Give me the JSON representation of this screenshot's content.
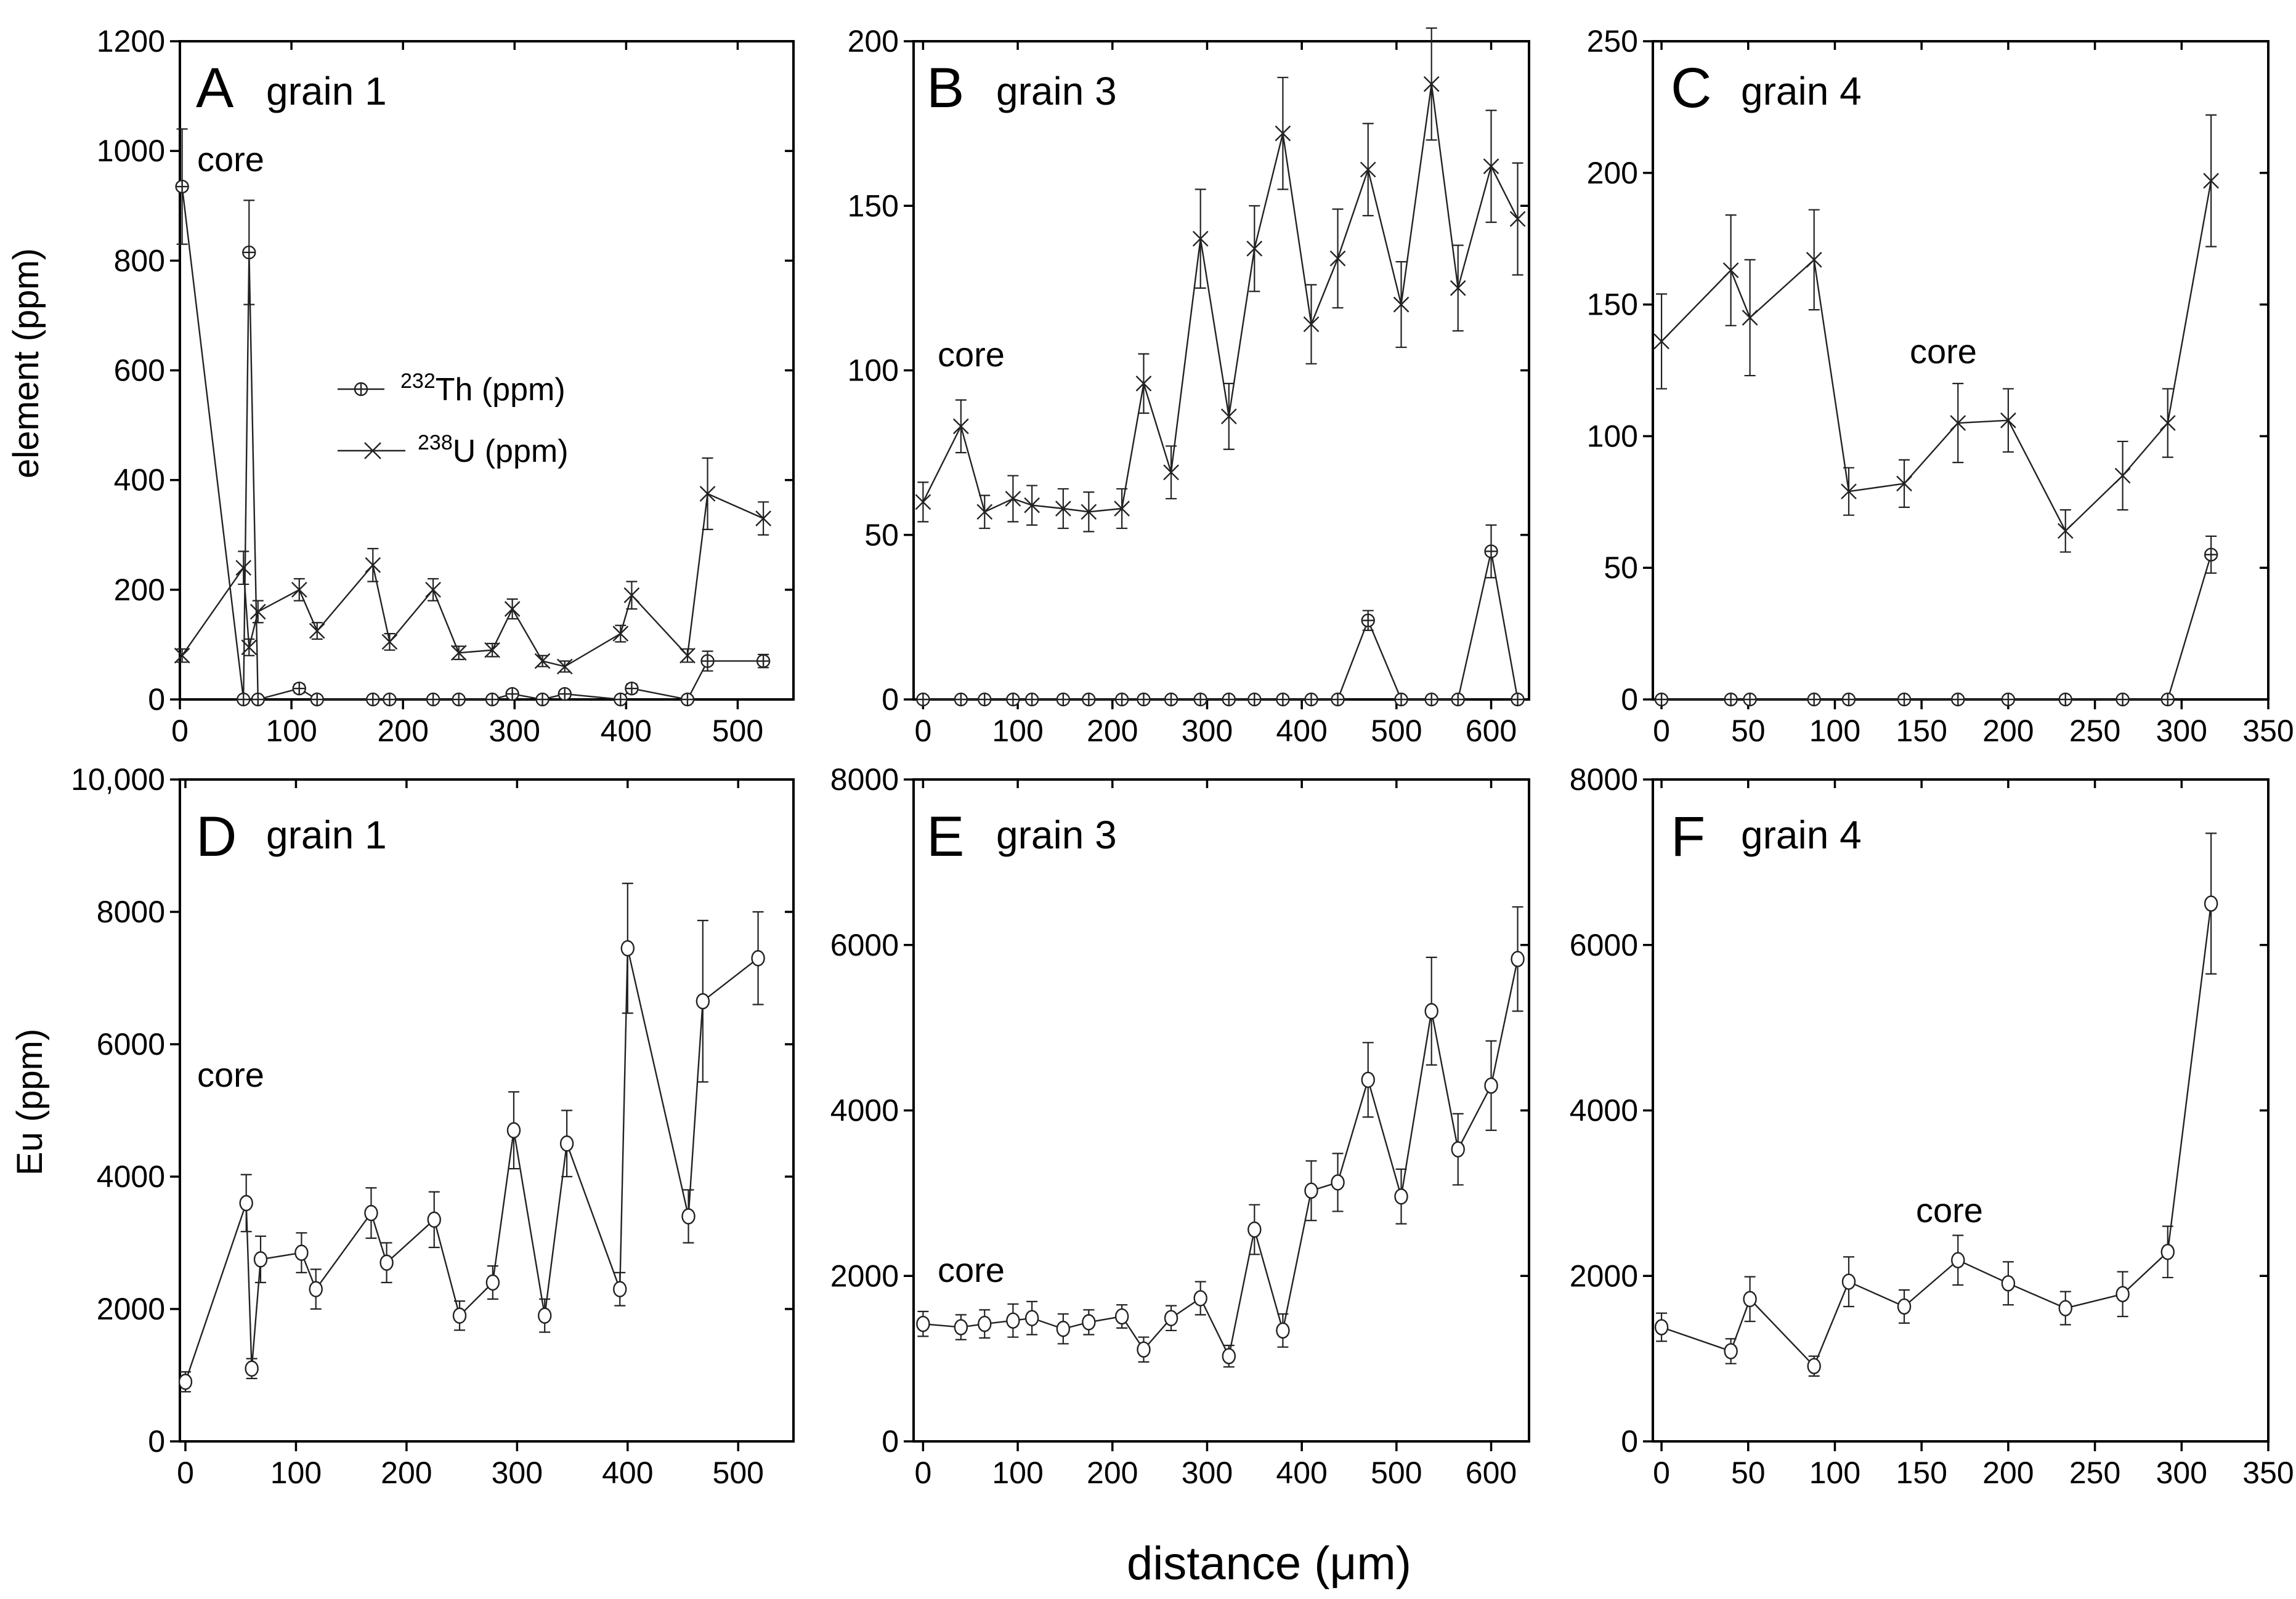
{
  "figure": {
    "xlabel": "distance (μm)"
  },
  "legend": [
    {
      "sup": "232",
      "text": "Th (ppm)",
      "marker": "circle-plus"
    },
    {
      "sup": "238",
      "text": "U (ppm)",
      "marker": "x"
    }
  ],
  "chart_data": [
    {
      "id": "A",
      "type": "line",
      "letter": "A",
      "grain": "grain 1",
      "ylabel": "element (ppm)",
      "core_label": "core",
      "xlim": [
        0,
        550
      ],
      "xticks": [
        0,
        100,
        200,
        300,
        400,
        500
      ],
      "xtick_labels": [
        "0",
        "100",
        "200",
        "300",
        "400",
        "500"
      ],
      "ylim": [
        0,
        1200
      ],
      "yticks": [
        0,
        200,
        400,
        600,
        800,
        1000,
        1200
      ],
      "ytick_labels": [
        "0",
        "200",
        "400",
        "600",
        "800",
        "1000",
        "1200"
      ],
      "series": [
        {
          "name": "232Th (ppm)",
          "marker": "circle-plus",
          "x": [
            2,
            57,
            62,
            70,
            107,
            123,
            173,
            188,
            227,
            250,
            280,
            298,
            325,
            345,
            395,
            405,
            455,
            473,
            523
          ],
          "y": [
            935,
            0,
            815,
            0,
            20,
            0,
            0,
            0,
            0,
            0,
            0,
            10,
            0,
            10,
            0,
            20,
            0,
            70,
            70
          ],
          "err": [
            105,
            5,
            95,
            5,
            8,
            4,
            4,
            4,
            4,
            4,
            4,
            6,
            4,
            6,
            4,
            8,
            4,
            18,
            12
          ]
        },
        {
          "name": "238U (ppm)",
          "marker": "x",
          "x": [
            2,
            57,
            62,
            70,
            107,
            123,
            173,
            188,
            227,
            250,
            280,
            298,
            325,
            345,
            395,
            405,
            455,
            473,
            523
          ],
          "y": [
            80,
            240,
            95,
            160,
            200,
            125,
            245,
            105,
            200,
            85,
            90,
            165,
            70,
            60,
            120,
            190,
            80,
            375,
            330
          ],
          "err": [
            12,
            30,
            15,
            20,
            20,
            15,
            30,
            15,
            20,
            12,
            12,
            18,
            10,
            10,
            15,
            25,
            12,
            65,
            30
          ]
        }
      ]
    },
    {
      "id": "B",
      "type": "line",
      "letter": "B",
      "grain": "grain 3",
      "ylabel": "",
      "core_label": "core",
      "xlim": [
        -10,
        640
      ],
      "xticks": [
        0,
        100,
        200,
        300,
        400,
        500,
        600
      ],
      "xtick_labels": [
        "0",
        "100",
        "200",
        "300",
        "400",
        "500",
        "600"
      ],
      "ylim": [
        0,
        200
      ],
      "yticks": [
        0,
        50,
        100,
        150,
        200
      ],
      "ytick_labels": [
        "0",
        "50",
        "100",
        "150",
        "200"
      ],
      "series": [
        {
          "name": "232Th (ppm)",
          "marker": "circle-plus",
          "x": [
            0,
            40,
            65,
            95,
            115,
            148,
            175,
            210,
            233,
            262,
            293,
            323,
            350,
            380,
            410,
            438,
            470,
            505,
            537,
            565,
            600,
            628
          ],
          "y": [
            0,
            0,
            0,
            0,
            0,
            0,
            0,
            0,
            0,
            0,
            0,
            0,
            0,
            0,
            0,
            0,
            24,
            0,
            0,
            0,
            45,
            0
          ],
          "err": [
            1,
            1,
            1,
            1,
            1,
            1,
            1,
            1,
            1,
            1,
            1,
            1,
            1,
            1,
            1,
            1,
            3,
            1,
            1,
            1,
            8,
            1
          ]
        },
        {
          "name": "238U (ppm)",
          "marker": "x",
          "x": [
            0,
            40,
            65,
            95,
            115,
            148,
            175,
            210,
            233,
            262,
            293,
            323,
            350,
            380,
            410,
            438,
            470,
            505,
            537,
            565,
            600,
            628
          ],
          "y": [
            60,
            83,
            57,
            61,
            59,
            58,
            57,
            58,
            96,
            69,
            140,
            86,
            137,
            172,
            114,
            134,
            161,
            120,
            187,
            125,
            162,
            146
          ],
          "err": [
            6,
            8,
            5,
            7,
            6,
            6,
            6,
            6,
            9,
            8,
            15,
            10,
            13,
            17,
            12,
            15,
            14,
            13,
            17,
            13,
            17,
            17
          ]
        }
      ]
    },
    {
      "id": "C",
      "type": "line",
      "letter": "C",
      "grain": "grain 4",
      "ylabel": "",
      "core_label": "core",
      "xlim": [
        -5,
        350
      ],
      "xticks": [
        0,
        50,
        100,
        150,
        200,
        250,
        300,
        350
      ],
      "xtick_labels": [
        "0",
        "50",
        "100",
        "150",
        "200",
        "250",
        "300",
        "350"
      ],
      "ylim": [
        0,
        250
      ],
      "yticks": [
        0,
        50,
        100,
        150,
        200,
        250
      ],
      "ytick_labels": [
        "0",
        "50",
        "100",
        "150",
        "200",
        "250"
      ],
      "series": [
        {
          "name": "232Th (ppm)",
          "marker": "circle-plus",
          "x": [
            0,
            40,
            51,
            88,
            108,
            140,
            171,
            200,
            233,
            266,
            292,
            317
          ],
          "y": [
            0,
            0,
            0,
            0,
            0,
            0,
            0,
            0,
            0,
            0,
            0,
            55
          ],
          "err": [
            1,
            1,
            1,
            1,
            1,
            1,
            1,
            1,
            1,
            1,
            1,
            7
          ]
        },
        {
          "name": "238U (ppm)",
          "marker": "x",
          "x": [
            0,
            40,
            51,
            88,
            108,
            140,
            171,
            200,
            233,
            266,
            292,
            317
          ],
          "y": [
            136,
            163,
            145,
            167,
            79,
            82,
            105,
            106,
            64,
            85,
            105,
            197
          ],
          "err": [
            18,
            21,
            22,
            19,
            9,
            9,
            15,
            12,
            8,
            13,
            13,
            25
          ]
        }
      ]
    },
    {
      "id": "D",
      "type": "line",
      "letter": "D",
      "grain": "grain 1",
      "ylabel": "Eu (ppm)",
      "core_label": "core",
      "xlim": [
        -5,
        550
      ],
      "xticks": [
        0,
        100,
        200,
        300,
        400,
        500
      ],
      "xtick_labels": [
        "0",
        "100",
        "200",
        "300",
        "400",
        "500"
      ],
      "ylim": [
        0,
        10000
      ],
      "yticks": [
        0,
        2000,
        4000,
        6000,
        8000,
        10000
      ],
      "ytick_labels": [
        "0",
        "2000",
        "4000",
        "6000",
        "8000",
        "10,000"
      ],
      "series": [
        {
          "name": "Eu (ppm)",
          "marker": "circle",
          "x": [
            0,
            55,
            60,
            68,
            105,
            118,
            168,
            182,
            225,
            248,
            278,
            297,
            325,
            345,
            393,
            400,
            455,
            468,
            518
          ],
          "y": [
            900,
            3600,
            1100,
            2750,
            2850,
            2300,
            3450,
            2700,
            3350,
            1900,
            2400,
            4700,
            1900,
            4500,
            2300,
            7450,
            3400,
            6650,
            7300
          ],
          "err": [
            150,
            430,
            150,
            350,
            300,
            300,
            380,
            300,
            420,
            220,
            250,
            580,
            250,
            500,
            250,
            980,
            400,
            1220,
            700
          ]
        }
      ]
    },
    {
      "id": "E",
      "type": "line",
      "letter": "E",
      "grain": "grain 3",
      "ylabel": "",
      "core_label": "core",
      "xlim": [
        -10,
        640
      ],
      "xticks": [
        0,
        100,
        200,
        300,
        400,
        500,
        600
      ],
      "xtick_labels": [
        "0",
        "100",
        "200",
        "300",
        "400",
        "500",
        "600"
      ],
      "ylim": [
        0,
        8000
      ],
      "yticks": [
        0,
        2000,
        4000,
        6000,
        8000
      ],
      "ytick_labels": [
        "0",
        "2000",
        "4000",
        "6000",
        "8000"
      ],
      "series": [
        {
          "name": "Eu (ppm)",
          "marker": "circle",
          "x": [
            0,
            40,
            65,
            95,
            115,
            148,
            175,
            210,
            233,
            262,
            293,
            323,
            350,
            380,
            410,
            438,
            470,
            505,
            537,
            565,
            600,
            628
          ],
          "y": [
            1420,
            1380,
            1420,
            1460,
            1490,
            1360,
            1440,
            1510,
            1110,
            1490,
            1730,
            1030,
            2560,
            1340,
            3030,
            3130,
            4370,
            2960,
            5200,
            3530,
            4300,
            5830
          ],
          "err": [
            150,
            150,
            170,
            200,
            200,
            180,
            150,
            140,
            150,
            150,
            200,
            130,
            300,
            200,
            360,
            350,
            450,
            330,
            650,
            430,
            540,
            630
          ]
        }
      ]
    },
    {
      "id": "F",
      "type": "line",
      "letter": "F",
      "grain": "grain 4",
      "ylabel": "",
      "core_label": "core",
      "xlim": [
        -5,
        350
      ],
      "xticks": [
        0,
        50,
        100,
        150,
        200,
        250,
        300,
        350
      ],
      "xtick_labels": [
        "0",
        "50",
        "100",
        "150",
        "200",
        "250",
        "300",
        "350"
      ],
      "ylim": [
        0,
        8000
      ],
      "yticks": [
        0,
        2000,
        4000,
        6000,
        8000
      ],
      "ytick_labels": [
        "0",
        "2000",
        "4000",
        "6000",
        "8000"
      ],
      "series": [
        {
          "name": "Eu (ppm)",
          "marker": "circle",
          "x": [
            0,
            40,
            51,
            88,
            108,
            140,
            171,
            200,
            233,
            266,
            292,
            317
          ],
          "y": [
            1380,
            1090,
            1720,
            910,
            1930,
            1630,
            2190,
            1910,
            1610,
            1780,
            2290,
            6500
          ],
          "err": [
            170,
            150,
            270,
            120,
            300,
            200,
            300,
            260,
            200,
            270,
            310,
            850
          ]
        }
      ]
    }
  ]
}
